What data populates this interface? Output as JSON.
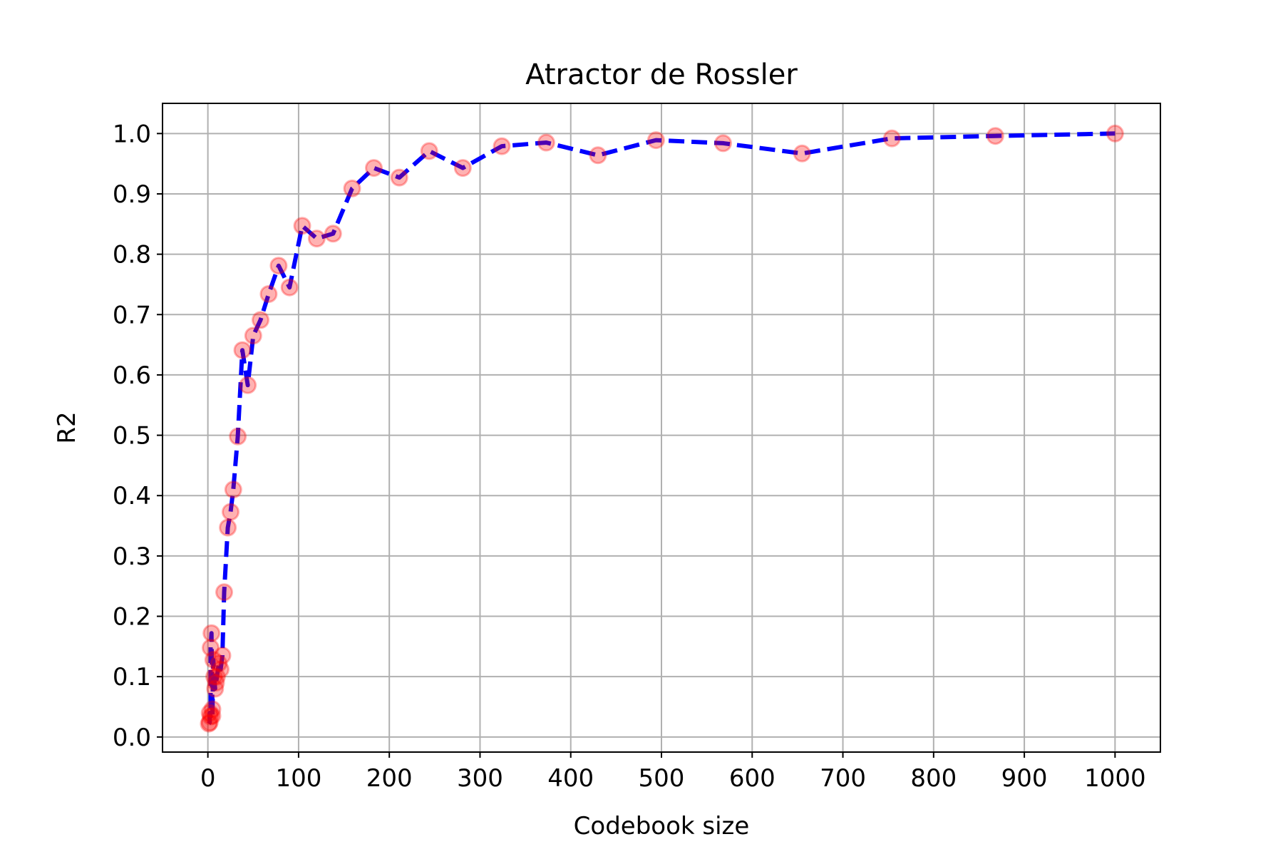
{
  "chart_data": {
    "type": "line",
    "title": "Atractor de Rossler",
    "xlabel": "Codebook size",
    "ylabel": "R2",
    "xlim": [
      -50,
      1050
    ],
    "ylim": [
      -0.025,
      1.05
    ],
    "xticks": [
      0,
      100,
      200,
      300,
      400,
      500,
      600,
      700,
      800,
      900,
      1000
    ],
    "xtick_labels": [
      "0",
      "100",
      "200",
      "300",
      "400",
      "500",
      "600",
      "700",
      "800",
      "900",
      "1000"
    ],
    "yticks": [
      0.0,
      0.1,
      0.2,
      0.3,
      0.4,
      0.5,
      0.6,
      0.7,
      0.8,
      0.9,
      1.0
    ],
    "ytick_labels": [
      "0.0",
      "0.1",
      "0.2",
      "0.3",
      "0.4",
      "0.5",
      "0.6",
      "0.7",
      "0.8",
      "0.9",
      "1.0"
    ],
    "grid": true,
    "colors": {
      "line": "#0000ff",
      "marker": "#ff0000",
      "grid": "#b0b0b0",
      "axes": "#000000"
    },
    "line_style": "dashed",
    "x": [
      1,
      2,
      2,
      3,
      3,
      4,
      5,
      5,
      6,
      7,
      8,
      9,
      10,
      12,
      14,
      16,
      18,
      22,
      25,
      28,
      33,
      38,
      44,
      50,
      58,
      67,
      78,
      90,
      104,
      120,
      138,
      159,
      183,
      211,
      244,
      281,
      324,
      373,
      430,
      494,
      568,
      655,
      754,
      868,
      1000
    ],
    "y": [
      0.022,
      0.024,
      0.04,
      0.034,
      0.148,
      0.172,
      0.046,
      0.035,
      0.128,
      0.1,
      0.08,
      0.09,
      0.1,
      0.122,
      0.112,
      0.135,
      0.24,
      0.347,
      0.373,
      0.41,
      0.498,
      0.641,
      0.583,
      0.665,
      0.691,
      0.734,
      0.781,
      0.745,
      0.847,
      0.826,
      0.834,
      0.909,
      0.943,
      0.927,
      0.971,
      0.943,
      0.979,
      0.985,
      0.964,
      0.989,
      0.984,
      0.967,
      0.992,
      0.996,
      1.0
    ]
  }
}
